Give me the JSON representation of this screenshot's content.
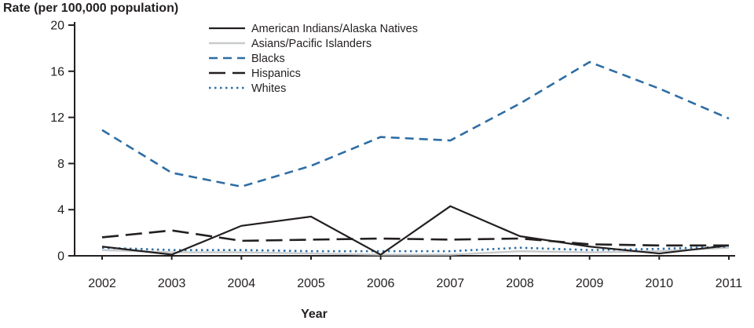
{
  "chart_data": {
    "type": "line",
    "title": "Rate (per 100,000 population)",
    "xlabel": "Year",
    "ylabel": "Rate (per 100,000 population)",
    "ylim": [
      0,
      20
    ],
    "yticks": [
      0,
      4,
      8,
      12,
      16,
      20
    ],
    "categories": [
      "2002",
      "2003",
      "2004",
      "2005",
      "2006",
      "2007",
      "2008",
      "2009",
      "2010",
      "2011"
    ],
    "grid": false,
    "legend_position": "top-inside-left",
    "colors": {
      "ink": "#231f20",
      "blue": "#2e6da4",
      "gray": "#c8cacc"
    },
    "series": [
      {
        "name": "American Indians/Alaska Natives",
        "color": "#231f20",
        "dash": "solid",
        "width": 2.2,
        "zorder": 4,
        "values": [
          0.8,
          0.1,
          2.6,
          3.4,
          0.1,
          4.3,
          1.7,
          0.8,
          0.2,
          0.9
        ]
      },
      {
        "name": "Asians/Pacific Islanders",
        "color": "#c8cacc",
        "dash": "solid",
        "width": 2.4,
        "zorder": 1,
        "values": [
          0.5,
          0.3,
          0.3,
          0.2,
          0.1,
          0.1,
          0.4,
          0.3,
          0.4,
          0.7
        ]
      },
      {
        "name": "Blacks",
        "color": "#2e6da4",
        "dash": "dashed",
        "width": 2.6,
        "zorder": 5,
        "values": [
          10.9,
          7.2,
          6.0,
          7.8,
          10.3,
          10.0,
          13.2,
          16.8,
          14.5,
          11.9
        ]
      },
      {
        "name": "Hispanics",
        "color": "#231f20",
        "dash": "longdash",
        "width": 2.6,
        "zorder": 3,
        "values": [
          1.6,
          2.2,
          1.3,
          1.4,
          1.5,
          1.4,
          1.5,
          1.0,
          0.9,
          0.9
        ]
      },
      {
        "name": "Whites",
        "color": "#2e6da4",
        "dash": "dotted",
        "width": 2.6,
        "zorder": 2,
        "values": [
          0.7,
          0.5,
          0.5,
          0.4,
          0.4,
          0.4,
          0.7,
          0.5,
          0.6,
          0.8
        ]
      }
    ]
  }
}
